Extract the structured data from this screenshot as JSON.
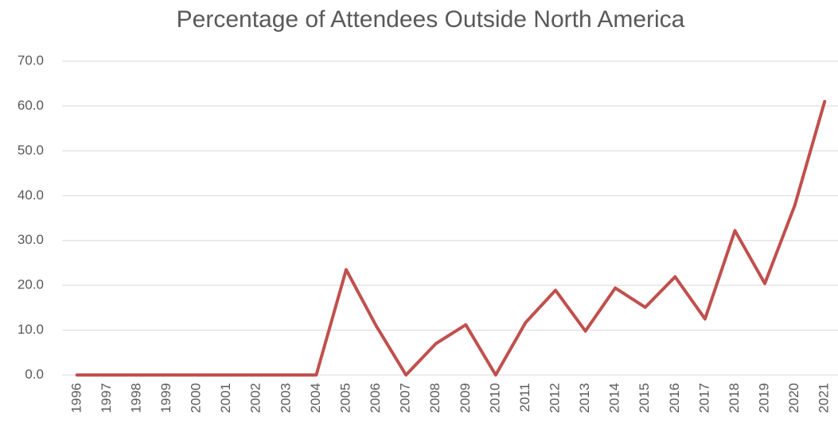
{
  "chart_data": {
    "type": "line",
    "title": "Percentage of Attendees Outside North America",
    "categories": [
      "1996",
      "1997",
      "1998",
      "1999",
      "2000",
      "2001",
      "2002",
      "2003",
      "2004",
      "2005",
      "2006",
      "2007",
      "2008",
      "2009",
      "2010",
      "2011",
      "2012",
      "2013",
      "2014",
      "2015",
      "2016",
      "2017",
      "2018",
      "2019",
      "2020",
      "2021"
    ],
    "values": [
      0,
      0,
      0,
      0,
      0,
      0,
      0,
      0,
      0,
      23.5,
      11,
      0,
      7,
      11.2,
      0,
      11.7,
      18.9,
      9.8,
      19.4,
      15.1,
      21.9,
      12.5,
      32.2,
      20.4,
      37.8,
      61
    ],
    "color": "#c0504d",
    "ylim": [
      0,
      70
    ],
    "yticks": [
      {
        "value": 0,
        "label": "0.0"
      },
      {
        "value": 10,
        "label": "10.0"
      },
      {
        "value": 20,
        "label": "20.0"
      },
      {
        "value": 30,
        "label": "30.0"
      },
      {
        "value": 40,
        "label": "40.0"
      },
      {
        "value": 50,
        "label": "50.0"
      },
      {
        "value": 60,
        "label": "60.0"
      },
      {
        "value": 70,
        "label": "70.0"
      }
    ],
    "grid": true
  }
}
